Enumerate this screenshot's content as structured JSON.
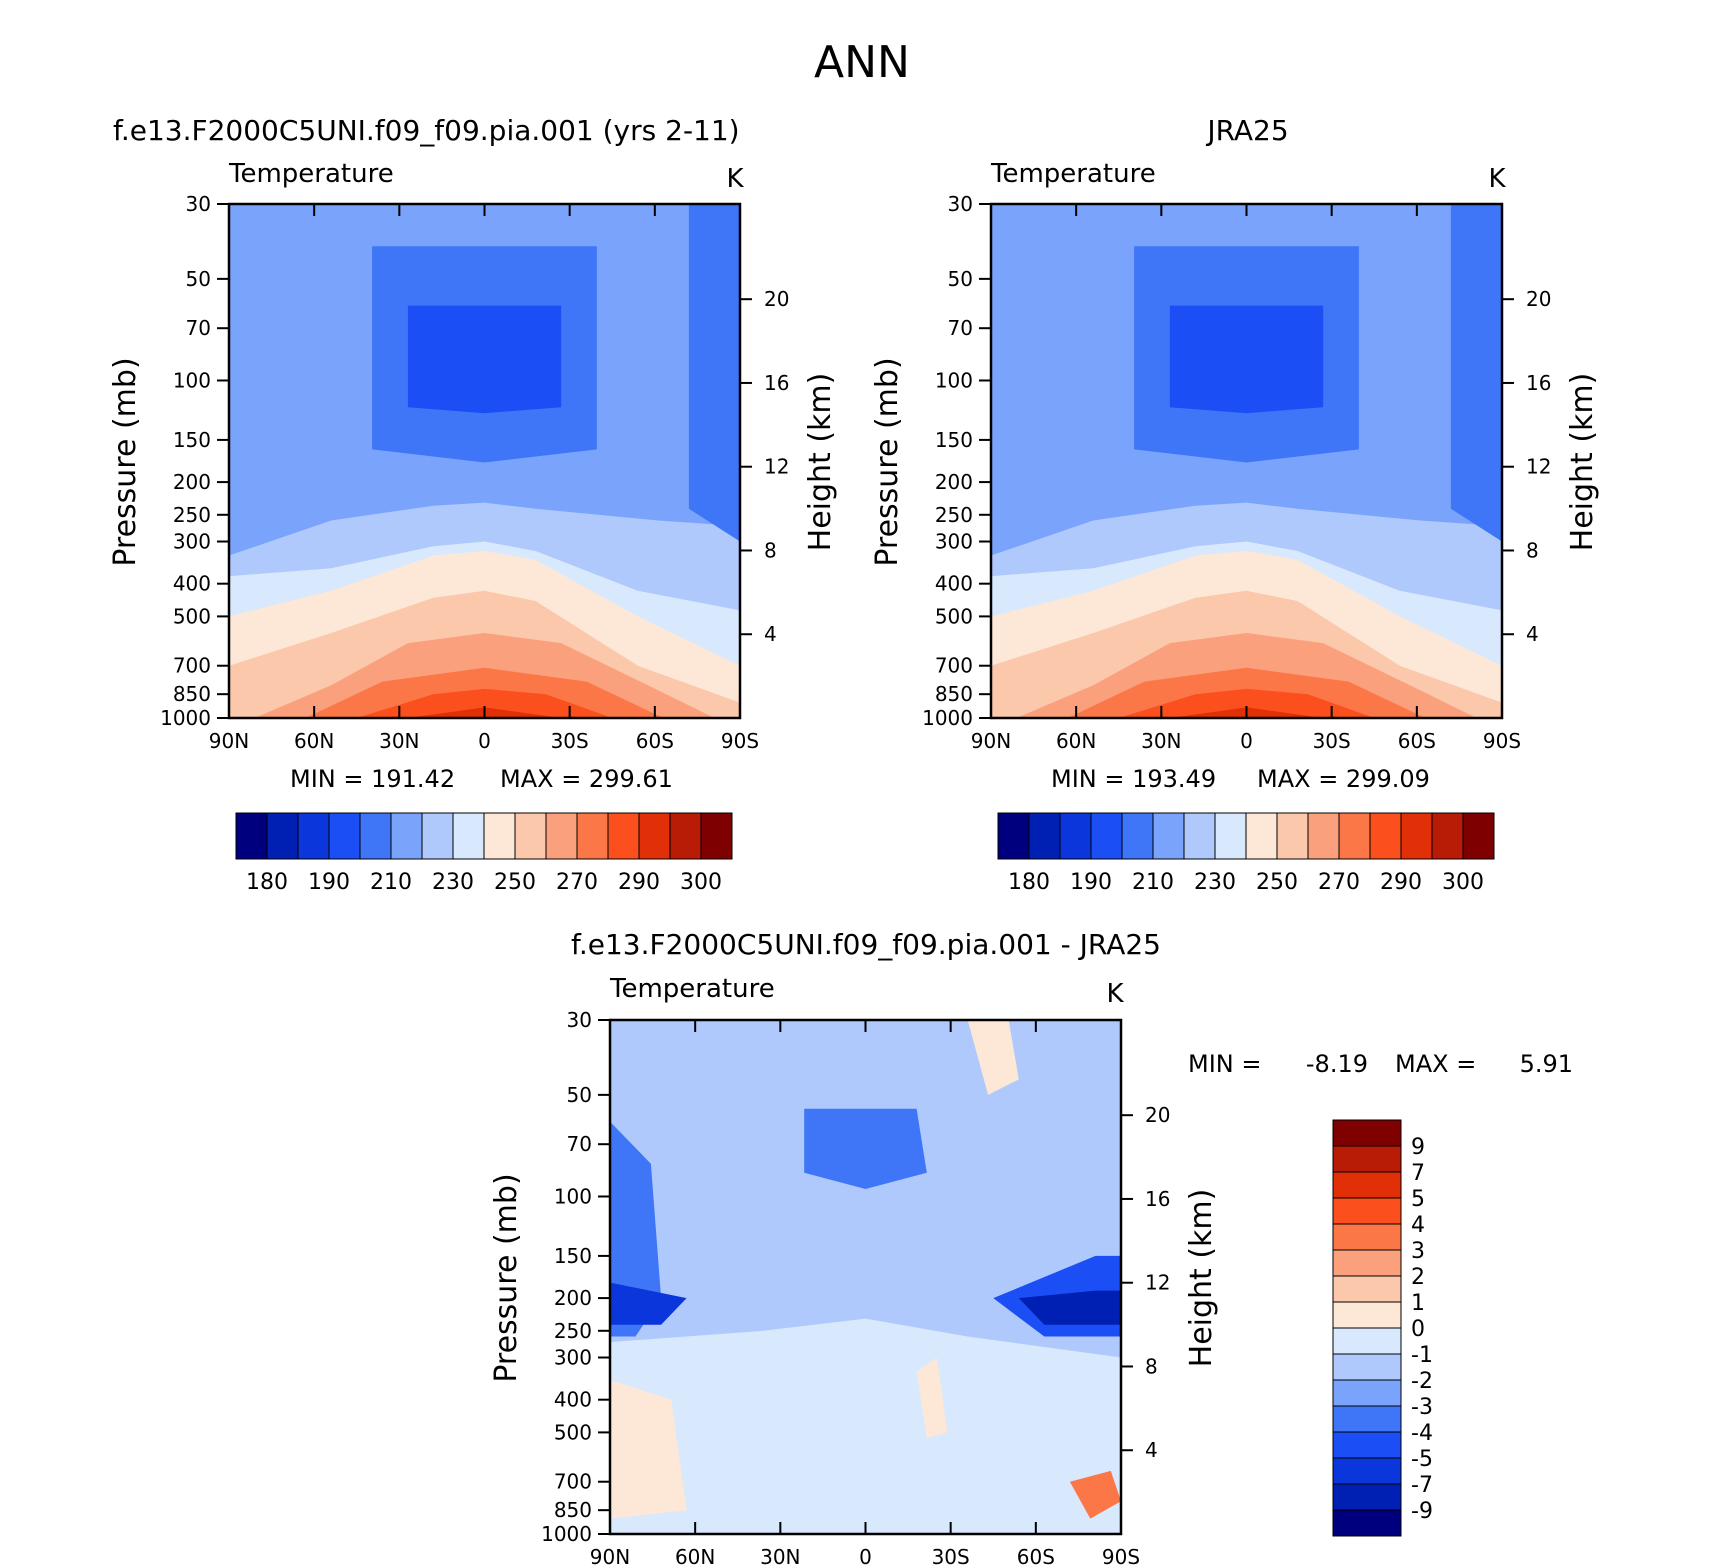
{
  "page_title": "ANN",
  "colors": {
    "temp_scale": [
      "#00007f",
      "#0020b4",
      "#0a36dc",
      "#1c4ef6",
      "#3f76f8",
      "#7aa3fb",
      "#b0c9fd",
      "#d8e8fd",
      "#fde8d8",
      "#fcc8ac",
      "#fba07c",
      "#fb7748",
      "#fb4f1d",
      "#e13008",
      "#b81b06",
      "#7f0000"
    ],
    "diff_scale": [
      "#00007f",
      "#0020b4",
      "#0a36dc",
      "#1c4ef6",
      "#3f76f8",
      "#7aa3fb",
      "#b0c9fd",
      "#d8e8fd",
      "#fde8d8",
      "#fcc8ac",
      "#fba07c",
      "#fb7748",
      "#fb4f1d",
      "#e13008",
      "#b81b06",
      "#7f0000"
    ]
  },
  "chart_data": [
    {
      "type": "heatmap",
      "title": "f.e13.F2000C5UNI.f09_f09.pia.001 (yrs 2-11)",
      "variable": "Temperature",
      "units": "K",
      "xlabel": "",
      "ylabel": "Pressure (mb)",
      "y2label": "Height (km)",
      "x_ticks": [
        "90N",
        "60N",
        "30N",
        "0",
        "30S",
        "60S",
        "90S"
      ],
      "y_ticks": [
        30,
        50,
        70,
        100,
        150,
        200,
        250,
        300,
        400,
        500,
        700,
        850,
        1000
      ],
      "y2_ticks": [
        20,
        16,
        12,
        8,
        4
      ],
      "y_scale": "log",
      "ylim": [
        1000,
        30
      ],
      "min_label": "MIN = 191.42",
      "max_label": "MAX = 299.61",
      "min": 191.42,
      "max": 299.61,
      "colorbar_labels": [
        "180",
        "190",
        "210",
        "230",
        "250",
        "270",
        "290",
        "300"
      ]
    },
    {
      "type": "heatmap",
      "title": "JRA25",
      "variable": "Temperature",
      "units": "K",
      "xlabel": "",
      "ylabel": "Pressure (mb)",
      "y2label": "Height (km)",
      "x_ticks": [
        "90N",
        "60N",
        "30N",
        "0",
        "30S",
        "60S",
        "90S"
      ],
      "y_ticks": [
        30,
        50,
        70,
        100,
        150,
        200,
        250,
        300,
        400,
        500,
        700,
        850,
        1000
      ],
      "y2_ticks": [
        20,
        16,
        12,
        8,
        4
      ],
      "y_scale": "log",
      "ylim": [
        1000,
        30
      ],
      "min_label": "MIN = 193.49",
      "max_label": "MAX = 299.09",
      "min": 193.49,
      "max": 299.09,
      "colorbar_labels": [
        "180",
        "190",
        "210",
        "230",
        "250",
        "270",
        "290",
        "300"
      ]
    },
    {
      "type": "heatmap",
      "title": "f.e13.F2000C5UNI.f09_f09.pia.001 - JRA25",
      "variable": "Temperature",
      "units": "K",
      "xlabel": "",
      "ylabel": "Pressure (mb)",
      "y2label": "Height (km)",
      "x_ticks": [
        "90N",
        "60N",
        "30N",
        "0",
        "30S",
        "60S",
        "90S"
      ],
      "y_ticks": [
        30,
        50,
        70,
        100,
        150,
        200,
        250,
        300,
        400,
        500,
        700,
        850,
        1000
      ],
      "y2_ticks": [
        20,
        16,
        12,
        8,
        4
      ],
      "y_scale": "log",
      "ylim": [
        1000,
        30
      ],
      "min_label": "MIN =",
      "min_value": "-8.19",
      "max_label": "MAX =",
      "max_value": "5.91",
      "min": -8.19,
      "max": 5.91,
      "colorbar_labels": [
        "9",
        "7",
        "5",
        "4",
        "3",
        "2",
        "1",
        "0",
        "-1",
        "-2",
        "-3",
        "-4",
        "-5",
        "-7",
        "-9"
      ]
    }
  ]
}
